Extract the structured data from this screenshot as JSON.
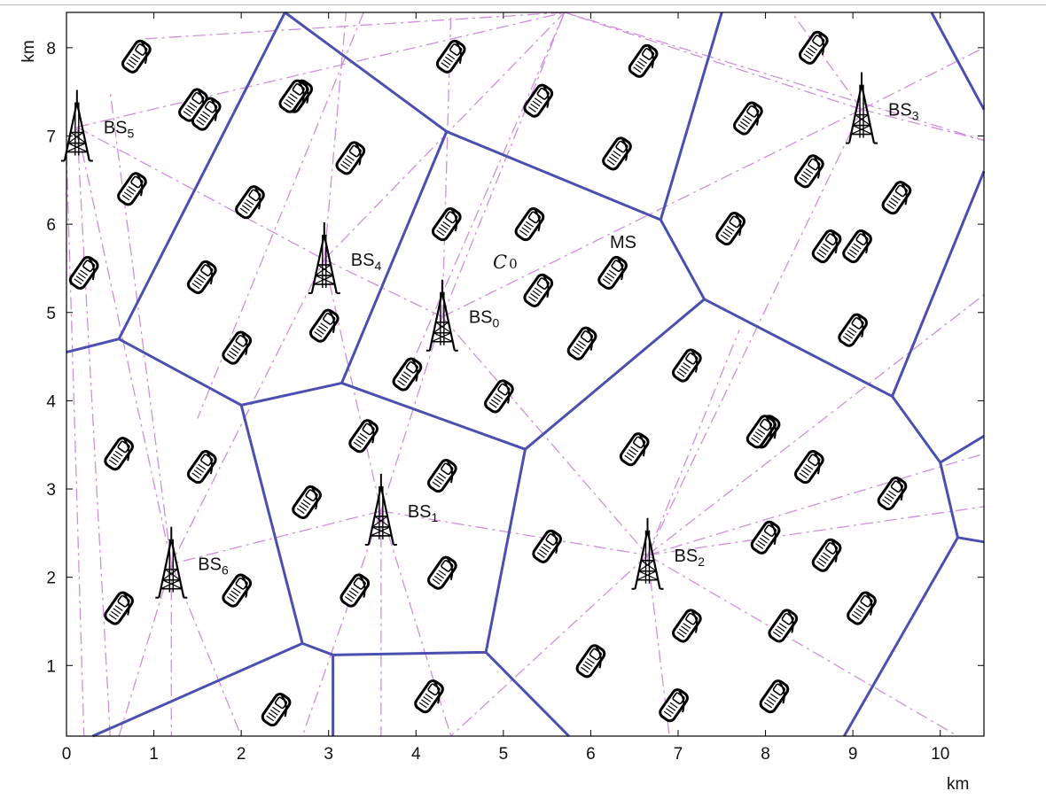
{
  "axes": {
    "x_unit": "km",
    "y_unit": "km",
    "x_ticks": [
      "0",
      "1",
      "2",
      "3",
      "4",
      "5",
      "6",
      "7",
      "8",
      "9",
      "10"
    ],
    "y_ticks": [
      "1",
      "2",
      "3",
      "4",
      "5",
      "6",
      "7",
      "8"
    ],
    "x_range": [
      0,
      10.5
    ],
    "y_range": [
      0.2,
      8.4
    ]
  },
  "base_stations": [
    {
      "id": "bs0",
      "label": "BS",
      "sub": "0",
      "x": 4.3,
      "y": 4.95
    },
    {
      "id": "bs1",
      "label": "BS",
      "sub": "1",
      "x": 3.6,
      "y": 2.75
    },
    {
      "id": "bs2",
      "label": "BS",
      "sub": "2",
      "x": 6.65,
      "y": 2.25
    },
    {
      "id": "bs3",
      "label": "BS",
      "sub": "3",
      "x": 9.1,
      "y": 7.3
    },
    {
      "id": "bs4",
      "label": "BS",
      "sub": "4",
      "x": 2.95,
      "y": 5.6
    },
    {
      "id": "bs5",
      "label": "BS",
      "sub": "5",
      "x": 0.12,
      "y": 7.1
    },
    {
      "id": "bs6",
      "label": "BS",
      "sub": "6",
      "x": 1.2,
      "y": 2.15
    }
  ],
  "annotations": {
    "ms": "MS",
    "cell": "C",
    "cell_sub": "0"
  },
  "cell_boundaries": [
    [
      [
        2.5,
        8.4
      ],
      [
        4.35,
        7.05
      ],
      [
        6.8,
        6.05
      ],
      [
        7.3,
        5.15
      ],
      [
        9.45,
        4.05
      ],
      [
        10.5,
        6.6
      ]
    ],
    [
      [
        7.5,
        8.4
      ],
      [
        6.8,
        6.05
      ]
    ],
    [
      [
        9.9,
        8.4
      ],
      [
        10.5,
        7.3
      ]
    ],
    [
      [
        4.35,
        7.05
      ],
      [
        3.15,
        4.2
      ],
      [
        2.0,
        3.95
      ],
      [
        0.6,
        4.7
      ],
      [
        0.0,
        4.55
      ]
    ],
    [
      [
        0.6,
        4.7
      ],
      [
        2.5,
        8.4
      ]
    ],
    [
      [
        3.15,
        4.2
      ],
      [
        5.25,
        3.45
      ],
      [
        7.3,
        5.15
      ]
    ],
    [
      [
        2.0,
        3.95
      ],
      [
        2.7,
        1.25
      ],
      [
        3.05,
        1.12
      ],
      [
        4.8,
        1.15
      ],
      [
        5.25,
        3.45
      ]
    ],
    [
      [
        2.7,
        1.25
      ],
      [
        0.3,
        0.2
      ]
    ],
    [
      [
        3.05,
        1.12
      ],
      [
        3.05,
        0.2
      ]
    ],
    [
      [
        4.8,
        1.15
      ],
      [
        5.75,
        0.2
      ]
    ],
    [
      [
        9.45,
        4.05
      ],
      [
        10.0,
        3.3
      ],
      [
        10.5,
        3.6
      ]
    ],
    [
      [
        10.0,
        3.3
      ],
      [
        10.2,
        2.45
      ],
      [
        10.5,
        2.4
      ]
    ],
    [
      [
        10.2,
        2.45
      ],
      [
        8.9,
        0.2
      ]
    ]
  ],
  "links": [
    [
      [
        0.12,
        7.1
      ],
      [
        5.7,
        8.4
      ]
    ],
    [
      [
        0.12,
        7.1
      ],
      [
        2.95,
        5.6
      ]
    ],
    [
      [
        0.12,
        7.1
      ],
      [
        0.5,
        0.2
      ]
    ],
    [
      [
        0.12,
        7.1
      ],
      [
        1.2,
        2.15
      ]
    ],
    [
      [
        0.0,
        6.8
      ],
      [
        0.2,
        0.2
      ]
    ],
    [
      [
        0.9,
        8.1
      ],
      [
        5.7,
        8.4
      ]
    ],
    [
      [
        2.95,
        5.6
      ],
      [
        5.7,
        8.4
      ]
    ],
    [
      [
        2.95,
        5.6
      ],
      [
        4.3,
        4.95
      ]
    ],
    [
      [
        2.95,
        5.6
      ],
      [
        3.6,
        2.75
      ]
    ],
    [
      [
        2.95,
        5.6
      ],
      [
        1.2,
        2.15
      ]
    ],
    [
      [
        2.95,
        5.6
      ],
      [
        3.2,
        8.4
      ]
    ],
    [
      [
        4.3,
        4.95
      ],
      [
        5.7,
        8.4
      ]
    ],
    [
      [
        4.3,
        4.95
      ],
      [
        4.4,
        8.4
      ]
    ],
    [
      [
        4.3,
        4.95
      ],
      [
        3.6,
        2.75
      ]
    ],
    [
      [
        4.3,
        4.95
      ],
      [
        6.65,
        2.25
      ]
    ],
    [
      [
        4.3,
        4.95
      ],
      [
        9.1,
        7.3
      ]
    ],
    [
      [
        3.4,
        8.4
      ],
      [
        1.5,
        3.8
      ]
    ],
    [
      [
        5.7,
        8.4
      ],
      [
        3.9,
        4.3
      ]
    ],
    [
      [
        9.1,
        7.3
      ],
      [
        5.7,
        8.4
      ]
    ],
    [
      [
        9.1,
        7.3
      ],
      [
        10.5,
        8.0
      ]
    ],
    [
      [
        9.1,
        7.3
      ],
      [
        10.5,
        6.95
      ]
    ],
    [
      [
        9.1,
        7.3
      ],
      [
        6.65,
        2.25
      ]
    ],
    [
      [
        9.1,
        7.3
      ],
      [
        8.3,
        8.4
      ]
    ],
    [
      [
        5.7,
        8.4
      ],
      [
        10.5,
        6.95
      ]
    ],
    [
      [
        3.6,
        2.75
      ],
      [
        1.2,
        2.15
      ]
    ],
    [
      [
        3.6,
        2.75
      ],
      [
        6.65,
        2.25
      ]
    ],
    [
      [
        3.6,
        2.75
      ],
      [
        2.7,
        0.2
      ]
    ],
    [
      [
        3.6,
        2.75
      ],
      [
        3.6,
        0.2
      ]
    ],
    [
      [
        3.6,
        2.75
      ],
      [
        4.4,
        0.2
      ]
    ],
    [
      [
        6.65,
        2.25
      ],
      [
        10.5,
        3.4
      ]
    ],
    [
      [
        6.65,
        2.25
      ],
      [
        10.5,
        5.2
      ]
    ],
    [
      [
        6.65,
        2.25
      ],
      [
        10.5,
        2.8
      ]
    ],
    [
      [
        6.65,
        2.25
      ],
      [
        10.2,
        0.2
      ]
    ],
    [
      [
        6.65,
        2.25
      ],
      [
        6.9,
        0.2
      ]
    ],
    [
      [
        6.65,
        2.25
      ],
      [
        4.4,
        0.2
      ]
    ],
    [
      [
        6.65,
        2.25
      ],
      [
        7.7,
        4.8
      ]
    ],
    [
      [
        1.2,
        2.15
      ],
      [
        0.6,
        0.2
      ]
    ],
    [
      [
        1.2,
        2.15
      ],
      [
        2.0,
        0.2
      ]
    ],
    [
      [
        1.2,
        2.15
      ],
      [
        1.2,
        0.2
      ]
    ],
    [
      [
        1.2,
        2.15
      ],
      [
        0.5,
        7.5
      ]
    ]
  ],
  "mobile_stations": [
    [
      0.8,
      7.9
    ],
    [
      1.45,
      7.35
    ],
    [
      2.65,
      7.45
    ],
    [
      0.75,
      6.4
    ],
    [
      0.2,
      5.45
    ],
    [
      1.55,
      5.4
    ],
    [
      2.1,
      6.25
    ],
    [
      3.25,
      6.75
    ],
    [
      1.95,
      4.6
    ],
    [
      2.95,
      4.85
    ],
    [
      4.4,
      7.9
    ],
    [
      5.4,
      7.4
    ],
    [
      6.6,
      7.85
    ],
    [
      6.3,
      6.8
    ],
    [
      4.35,
      6.0
    ],
    [
      5.3,
      6.0
    ],
    [
      5.4,
      5.25
    ],
    [
      6.25,
      5.45
    ],
    [
      5.9,
      4.65
    ],
    [
      3.9,
      4.3
    ],
    [
      4.95,
      4.05
    ],
    [
      8.55,
      8.0
    ],
    [
      7.8,
      7.2
    ],
    [
      8.5,
      6.6
    ],
    [
      9.5,
      6.3
    ],
    [
      7.6,
      5.95
    ],
    [
      8.7,
      5.75
    ],
    [
      8.0,
      3.65
    ],
    [
      9.05,
      5.75
    ],
    [
      9.0,
      4.8
    ],
    [
      7.95,
      3.65
    ],
    [
      7.1,
      4.4
    ],
    [
      6.5,
      3.45
    ],
    [
      8.5,
      3.25
    ],
    [
      9.45,
      2.95
    ],
    [
      8.0,
      2.45
    ],
    [
      8.7,
      2.25
    ],
    [
      7.1,
      1.45
    ],
    [
      8.2,
      1.45
    ],
    [
      9.1,
      1.65
    ],
    [
      6.0,
      1.05
    ],
    [
      6.95,
      0.55
    ],
    [
      8.1,
      0.65
    ],
    [
      5.5,
      2.35
    ],
    [
      4.3,
      3.15
    ],
    [
      4.3,
      2.05
    ],
    [
      3.3,
      1.85
    ],
    [
      2.75,
      2.85
    ],
    [
      3.4,
      3.6
    ],
    [
      0.6,
      3.4
    ],
    [
      1.55,
      3.25
    ],
    [
      1.95,
      1.85
    ],
    [
      0.6,
      1.65
    ],
    [
      2.4,
      0.5
    ],
    [
      4.15,
      0.65
    ],
    [
      1.6,
      7.25
    ],
    [
      2.6,
      7.45
    ]
  ]
}
